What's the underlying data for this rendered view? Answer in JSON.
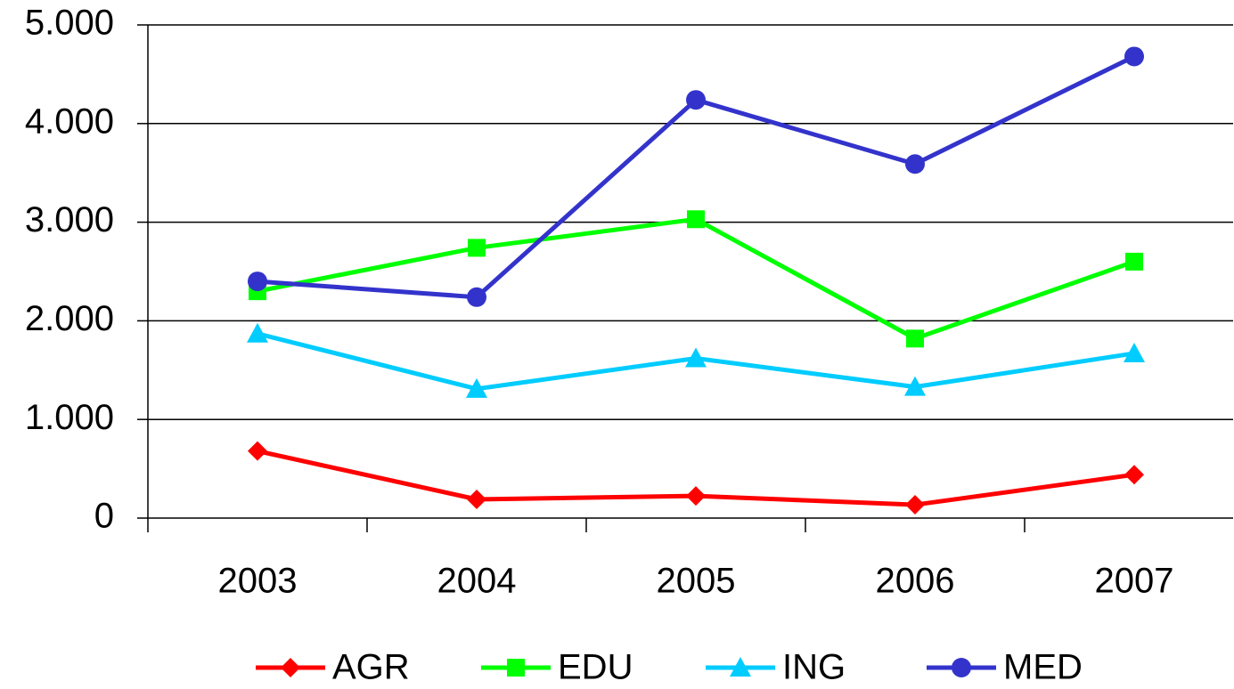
{
  "chart_data": {
    "type": "line",
    "categories": [
      "2003",
      "2004",
      "2005",
      "2006",
      "2007"
    ],
    "series": [
      {
        "name": "AGR",
        "color": "#ff0000",
        "marker": "diamond",
        "values": [
          680,
          190,
          225,
          135,
          440
        ]
      },
      {
        "name": "EDU",
        "color": "#00ff00",
        "marker": "square",
        "values": [
          2300,
          2740,
          3030,
          1820,
          2600
        ]
      },
      {
        "name": "ING",
        "color": "#00ccff",
        "marker": "triangle",
        "values": [
          1870,
          1310,
          1620,
          1330,
          1670
        ]
      },
      {
        "name": "MED",
        "color": "#3333cc",
        "marker": "circle",
        "values": [
          2400,
          2240,
          4240,
          3590,
          4680
        ]
      }
    ],
    "ylim": [
      0,
      5000
    ],
    "yticks": [
      0,
      {
        "value": 1000,
        "label": "1.000"
      },
      {
        "value": 2000,
        "label": "2.000"
      },
      {
        "value": 3000,
        "label": "3.000"
      },
      {
        "value": 4000,
        "label": "4.000"
      },
      {
        "value": 5000,
        "label": "5.000"
      }
    ],
    "grid": true,
    "legend": "bottom"
  }
}
